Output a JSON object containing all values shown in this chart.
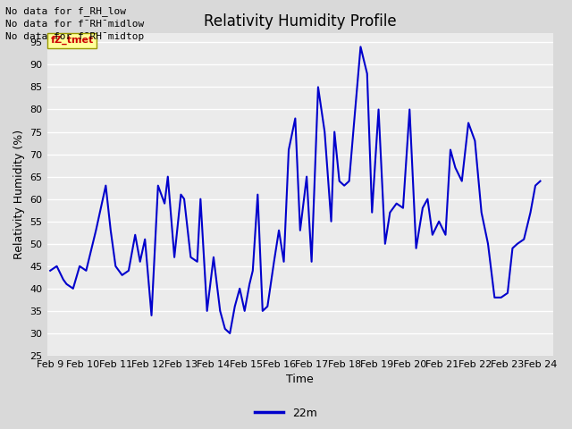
{
  "title": "Relativity Humidity Profile",
  "xlabel": "Time",
  "ylabel": "Relativity Humidity (%)",
  "ylim": [
    25,
    97
  ],
  "yticks": [
    25,
    30,
    35,
    40,
    45,
    50,
    55,
    60,
    65,
    70,
    75,
    80,
    85,
    90,
    95
  ],
  "line_color": "#0000cc",
  "line_width": 1.5,
  "legend_label": "22m",
  "no_data_text1": "No data for f_RH_low",
  "no_data_text2": "No data for f¯RH¯midlow",
  "no_data_text3": "No data for f¯RH¯midtop",
  "tooltip_text": "fZ_tmet",
  "tooltip_bg": "#ffff99",
  "tooltip_fg": "#cc0000",
  "fig_bg": "#d9d9d9",
  "plot_bg": "#ebebeb",
  "grid_color": "#ffffff",
  "x_values": [
    0,
    0.2,
    0.4,
    0.5,
    0.7,
    0.9,
    1.1,
    1.4,
    1.7,
    1.85,
    2.0,
    2.2,
    2.4,
    2.6,
    2.75,
    2.9,
    3.1,
    3.3,
    3.5,
    3.6,
    3.8,
    4.0,
    4.1,
    4.3,
    4.5,
    4.6,
    4.8,
    5.0,
    5.1,
    5.2,
    5.35,
    5.5,
    5.65,
    5.8,
    5.95,
    6.1,
    6.2,
    6.35,
    6.5,
    6.65,
    6.85,
    7.0,
    7.15,
    7.3,
    7.5,
    7.65,
    7.85,
    8.0,
    8.2,
    8.4,
    8.6,
    8.7,
    8.85,
    9.0,
    9.15,
    9.3,
    9.5,
    9.7,
    9.85,
    10.05,
    10.25,
    10.4,
    10.6,
    10.8,
    11.0,
    11.2,
    11.4,
    11.55,
    11.7,
    11.9,
    12.1,
    12.25,
    12.4,
    12.6,
    12.8,
    13.0,
    13.2,
    13.4,
    13.6,
    13.8,
    14.0,
    14.15,
    14.3,
    14.5,
    14.7,
    14.85,
    15.0
  ],
  "y_values": [
    44,
    45,
    42,
    41,
    40,
    45,
    44,
    53,
    63,
    53,
    45,
    43,
    44,
    52,
    46,
    51,
    34,
    63,
    59,
    65,
    47,
    61,
    60,
    47,
    46,
    60,
    35,
    47,
    41,
    35,
    31,
    30,
    36,
    40,
    35,
    41,
    44,
    61,
    35,
    36,
    46,
    53,
    46,
    71,
    78,
    53,
    65,
    46,
    85,
    75,
    55,
    75,
    64,
    63,
    64,
    77,
    94,
    88,
    57,
    80,
    50,
    57,
    59,
    58,
    80,
    49,
    58,
    60,
    52,
    55,
    52,
    71,
    67,
    64,
    77,
    73,
    57,
    50,
    38,
    38,
    39,
    49,
    50,
    51,
    57,
    63,
    64
  ],
  "x_tick_positions": [
    0,
    1,
    2,
    3,
    4,
    5,
    6,
    7,
    8,
    9,
    10,
    11,
    12,
    13,
    14,
    15
  ],
  "x_tick_labels": [
    "Feb 9",
    "Feb 10",
    "Feb 11",
    "Feb 12",
    "Feb 13",
    "Feb 14",
    "Feb 15",
    "Feb 16",
    "Feb 17",
    "Feb 18",
    "Feb 19",
    "Feb 20",
    "Feb 21",
    "Feb 22",
    "Feb 23",
    "Feb 24"
  ],
  "xlim": [
    -0.1,
    15.4
  ]
}
